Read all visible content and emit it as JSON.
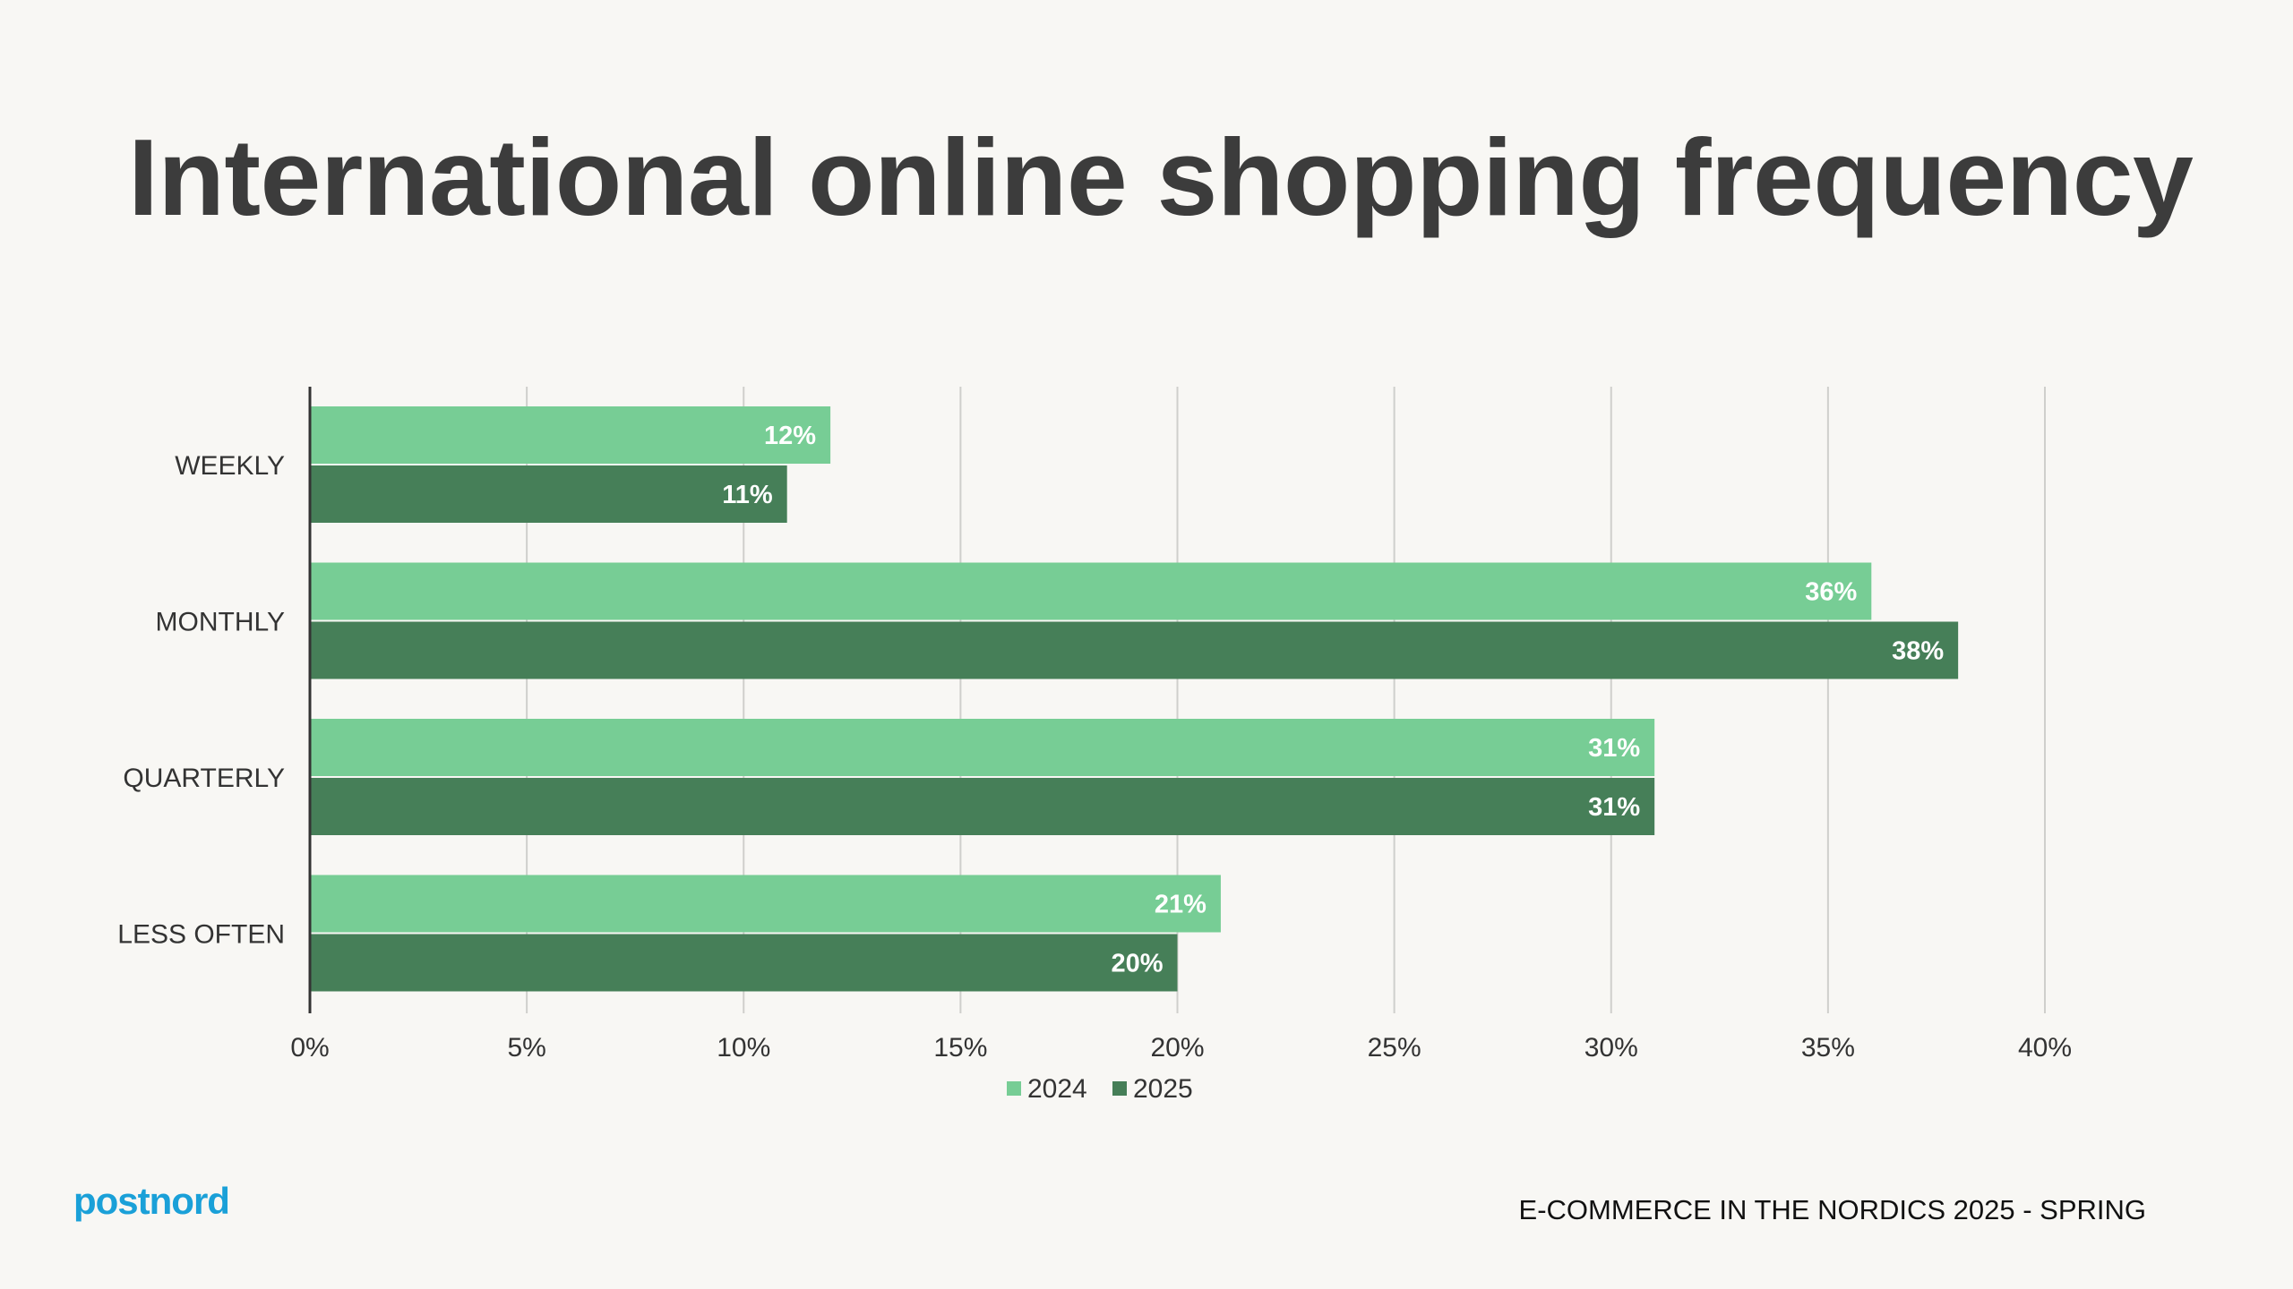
{
  "title": "International online shopping frequency",
  "footer": "E-COMMERCE IN THE NORDICS 2025 - SPRING",
  "logo_text": "postnord",
  "colors": {
    "accent_2024": "#77cd95",
    "accent_2025": "#467f58",
    "brand": "#1aa0d8"
  },
  "chart_data": {
    "type": "bar",
    "orientation": "horizontal",
    "categories": [
      "WEEKLY",
      "MONTHLY",
      "QUARTERLY",
      "LESS OFTEN"
    ],
    "series": [
      {
        "name": "2024",
        "values": [
          12,
          36,
          31,
          21
        ],
        "labels": [
          "12%",
          "36%",
          "31%",
          "21%"
        ]
      },
      {
        "name": "2025",
        "values": [
          11,
          38,
          31,
          20
        ],
        "labels": [
          "11%",
          "38%",
          "31%",
          "20%"
        ]
      }
    ],
    "xlim": [
      0,
      40
    ],
    "xticks": [
      0,
      5,
      10,
      15,
      20,
      25,
      30,
      35,
      40
    ],
    "xtick_labels": [
      "0%",
      "5%",
      "10%",
      "15%",
      "20%",
      "25%",
      "30%",
      "35%",
      "40%"
    ],
    "grid": true,
    "legend": "bottom-center"
  }
}
